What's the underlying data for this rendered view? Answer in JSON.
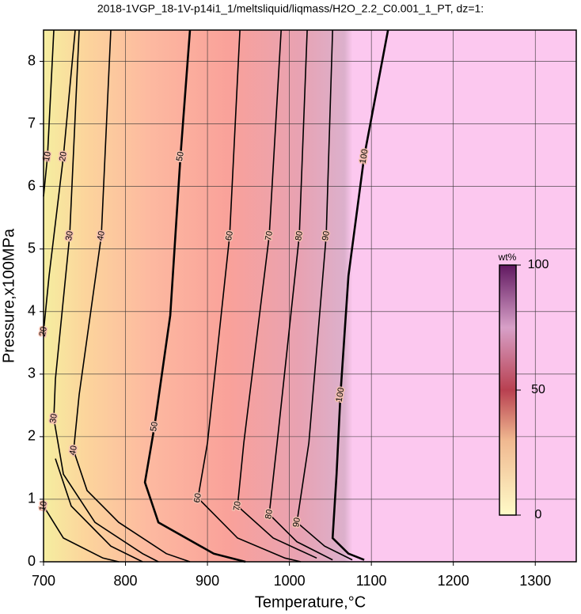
{
  "chart_data": {
    "type": "contour",
    "title": "2018-1VGP_18-1V-p14i1_1/meltsliquid/liqmass/H2O_2.2_C0.001_1_PT, dz=1:",
    "x_label": "Temperature,°C",
    "y_label": "Pressure,x100MPa",
    "xlim": [
      700,
      1350
    ],
    "ylim": [
      0,
      8.5
    ],
    "xticks": [
      700,
      800,
      900,
      1000,
      1100,
      1200,
      1300
    ],
    "yticks": [
      0,
      1,
      2,
      3,
      4,
      5,
      6,
      7,
      8
    ],
    "grid": true,
    "colorbar": {
      "label": "wt%",
      "lim": [
        0,
        100
      ],
      "ticks": [
        0,
        50,
        100
      ]
    },
    "contours": [
      {
        "level": 10,
        "x": [
          712.6,
          704.8,
          700,
          null,
          700,
          724.2,
          772.5,
          791.8
        ],
        "y": [
          8.5,
          6.48,
          5.84,
          null,
          0.89,
          0.38,
          0.06,
          0
        ]
      },
      {
        "level": 20,
        "x": [
          738.6,
          724.2,
          706.8,
          700,
          null,
          714.5,
          733.8,
          782.1,
          820.8
        ],
        "y": [
          8.5,
          6.48,
          4.57,
          3.68,
          null,
          1.65,
          0.89,
          0.25,
          0
        ]
      },
      {
        "level": 30,
        "x": [
          743.5,
          731.9,
          714.5,
          712.6,
          724.2,
          762.8,
          820.8,
          840.1
        ],
        "y": [
          8.5,
          5.21,
          2.92,
          2.29,
          1.4,
          0.63,
          0.13,
          0
        ]
      },
      {
        "level": 40,
        "x": [
          782.1,
          770.5,
          743.5,
          736.7,
          753.1,
          791.8,
          849.8,
          878.7
        ],
        "y": [
          8.5,
          5.21,
          2.67,
          1.78,
          1.14,
          0.63,
          0.13,
          0
        ]
      },
      {
        "level": 50,
        "x": [
          878.7,
          867.1,
          854.6,
          835.3,
          823.7,
          840.1,
          907.7,
          946.4
        ],
        "y": [
          8.5,
          6.48,
          3.94,
          2.16,
          1.27,
          0.63,
          0.13,
          0
        ]
      },
      {
        "level": 60,
        "x": [
          939.6,
          927.1,
          900,
          888.4,
          936.7,
          994.7,
          1014
        ],
        "y": [
          8.5,
          5.21,
          1.9,
          1.02,
          0.38,
          0.06,
          0
        ]
      },
      {
        "level": 70,
        "x": [
          989.9,
          975.4,
          944.4,
          936.7,
          980.2,
          1033.3
        ],
        "y": [
          8.5,
          5.21,
          1.9,
          0.89,
          0.38,
          0.06
        ]
      },
      {
        "level": 80,
        "x": [
          1021.7,
          1012.1,
          985,
          975.4,
          1009.2,
          1052.7
        ],
        "y": [
          8.5,
          5.21,
          1.9,
          0.76,
          0.32,
          0.03
        ]
      },
      {
        "level": 90,
        "x": [
          1052.7,
          1044.9,
          1023.7,
          1009.2,
          1043,
          1076.8
        ],
        "y": [
          8.5,
          5.21,
          1.9,
          0.63,
          0.25,
          0.03
        ]
      },
      {
        "level": 100,
        "x": [
          1120.3,
          1091.3,
          1072,
          1062.3,
          1057.5,
          1052.7,
          1072,
          1091.3
        ],
        "y": [
          8.5,
          6.48,
          4.57,
          2.67,
          1.4,
          0.38,
          0.13,
          0.03
        ]
      }
    ]
  }
}
